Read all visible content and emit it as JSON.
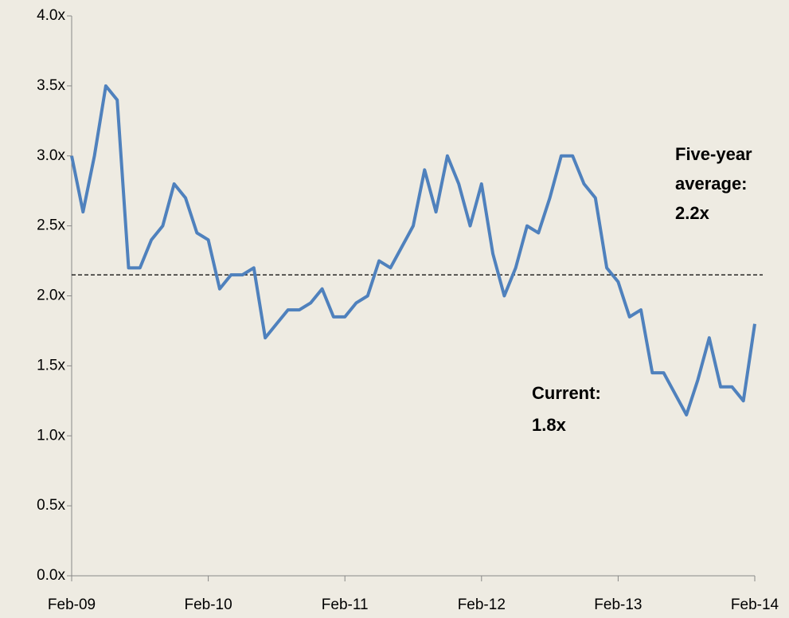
{
  "chart_data": {
    "type": "line",
    "x": [
      "2009-02",
      "2009-03",
      "2009-04",
      "2009-05",
      "2009-06",
      "2009-07",
      "2009-08",
      "2009-09",
      "2009-10",
      "2009-11",
      "2009-12",
      "2010-01",
      "2010-02",
      "2010-03",
      "2010-04",
      "2010-05",
      "2010-06",
      "2010-07",
      "2010-08",
      "2010-09",
      "2010-10",
      "2010-11",
      "2010-12",
      "2011-01",
      "2011-02",
      "2011-03",
      "2011-04",
      "2011-05",
      "2011-06",
      "2011-07",
      "2011-08",
      "2011-09",
      "2011-10",
      "2011-11",
      "2011-12",
      "2012-01",
      "2012-02",
      "2012-03",
      "2012-04",
      "2012-05",
      "2012-06",
      "2012-07",
      "2012-08",
      "2012-09",
      "2012-10",
      "2012-11",
      "2012-12",
      "2013-01",
      "2013-02",
      "2013-03",
      "2013-04",
      "2013-05",
      "2013-06",
      "2013-07",
      "2013-08",
      "2013-09",
      "2013-10",
      "2013-11",
      "2013-12",
      "2014-01",
      "2014-02"
    ],
    "series": [
      {
        "color": "#4f81bd",
        "values": [
          3.0,
          2.6,
          3.0,
          3.5,
          3.4,
          2.2,
          2.2,
          2.4,
          2.5,
          2.8,
          2.7,
          2.45,
          2.4,
          2.05,
          2.15,
          2.15,
          2.2,
          1.7,
          1.8,
          1.9,
          1.9,
          1.95,
          2.05,
          1.85,
          1.85,
          1.95,
          2.0,
          2.25,
          2.2,
          2.35,
          2.5,
          2.9,
          2.6,
          3.0,
          2.8,
          2.5,
          2.8,
          2.3,
          2.0,
          2.2,
          2.5,
          2.45,
          2.7,
          3.0,
          3.0,
          2.8,
          2.7,
          2.2,
          2.1,
          1.85,
          1.9,
          1.45,
          1.45,
          1.3,
          1.15,
          1.4,
          1.7,
          1.35,
          1.35,
          1.25,
          1.8
        ]
      }
    ],
    "average": 2.15,
    "ylim": [
      0,
      4
    ],
    "yticks": [
      {
        "value": 0,
        "label": "0.0x"
      },
      {
        "value": 0.5,
        "label": "0.5x"
      },
      {
        "value": 1,
        "label": "1.0x"
      },
      {
        "value": 1.5,
        "label": "1.5x"
      },
      {
        "value": 2,
        "label": "2.0x"
      },
      {
        "value": 2.5,
        "label": "2.5x"
      },
      {
        "value": 3,
        "label": "3.0x"
      },
      {
        "value": 3.5,
        "label": "3.5x"
      },
      {
        "value": 4,
        "label": "4.0x"
      }
    ],
    "xticks": [
      {
        "value": "2009-02",
        "label": "Feb-09"
      },
      {
        "value": "2010-02",
        "label": "Feb-10"
      },
      {
        "value": "2011-02",
        "label": "Feb-11"
      },
      {
        "value": "2012-02",
        "label": "Feb-12"
      },
      {
        "value": "2013-02",
        "label": "Feb-13"
      },
      {
        "value": "2014-02",
        "label": "Feb-14"
      }
    ],
    "annotations": [
      [
        "Five-year",
        "average:",
        "2.2x"
      ],
      [
        "Current:",
        "1.8x"
      ]
    ]
  }
}
